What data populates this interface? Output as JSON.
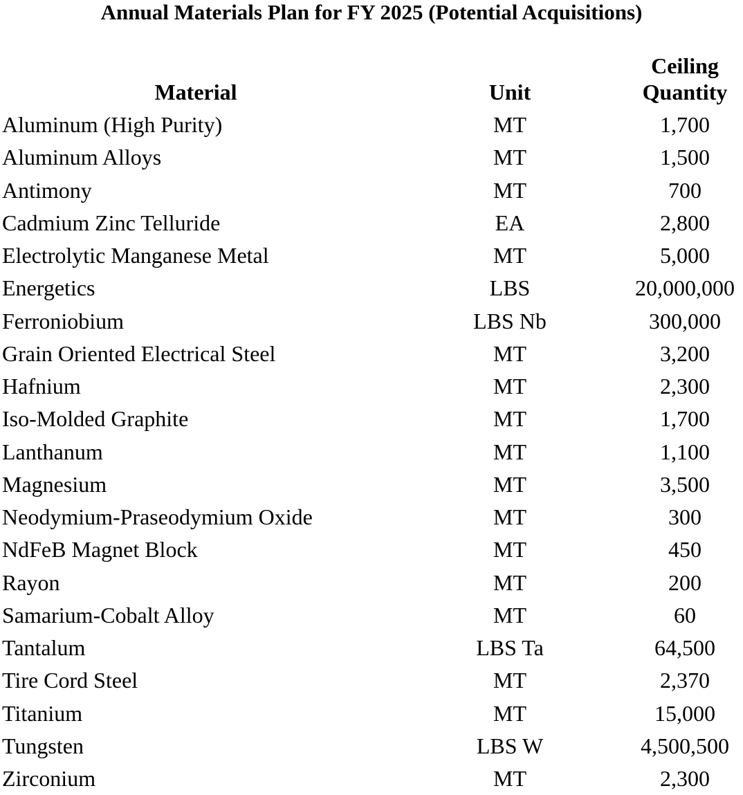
{
  "title": "Annual Materials Plan for FY 2025 (Potential Acquisitions)",
  "headers": {
    "material": "Material",
    "unit": "Unit",
    "qty_line1": "Ceiling",
    "qty_line2": "Quantity"
  },
  "rows": [
    {
      "material": "Aluminum (High Purity)",
      "unit": "MT",
      "qty": "1,700"
    },
    {
      "material": "Aluminum Alloys",
      "unit": "MT",
      "qty": "1,500"
    },
    {
      "material": "Antimony",
      "unit": "MT",
      "qty": "700"
    },
    {
      "material": "Cadmium Zinc Telluride",
      "unit": "EA",
      "qty": "2,800"
    },
    {
      "material": "Electrolytic Manganese Metal",
      "unit": "MT",
      "qty": "5,000"
    },
    {
      "material": "Energetics",
      "unit": "LBS",
      "qty": "20,000,000"
    },
    {
      "material": "Ferroniobium",
      "unit": "LBS Nb",
      "qty": "300,000"
    },
    {
      "material": "Grain Oriented Electrical Steel",
      "unit": "MT",
      "qty": "3,200"
    },
    {
      "material": "Hafnium",
      "unit": "MT",
      "qty": "2,300"
    },
    {
      "material": "Iso-Molded Graphite",
      "unit": "MT",
      "qty": "1,700"
    },
    {
      "material": "Lanthanum",
      "unit": "MT",
      "qty": "1,100"
    },
    {
      "material": "Magnesium",
      "unit": "MT",
      "qty": "3,500"
    },
    {
      "material": "Neodymium-Praseodymium Oxide",
      "unit": "MT",
      "qty": "300"
    },
    {
      "material": "NdFeB Magnet Block",
      "unit": "MT",
      "qty": "450"
    },
    {
      "material": "Rayon",
      "unit": "MT",
      "qty": "200"
    },
    {
      "material": "Samarium-Cobalt Alloy",
      "unit": "MT",
      "qty": "60"
    },
    {
      "material": "Tantalum",
      "unit": "LBS Ta",
      "qty": "64,500"
    },
    {
      "material": "Tire Cord Steel",
      "unit": "MT",
      "qty": "2,370"
    },
    {
      "material": "Titanium",
      "unit": "MT",
      "qty": "15,000"
    },
    {
      "material": "Tungsten",
      "unit": "LBS W",
      "qty": "4,500,500"
    },
    {
      "material": "Zirconium",
      "unit": "MT",
      "qty": "2,300"
    }
  ]
}
